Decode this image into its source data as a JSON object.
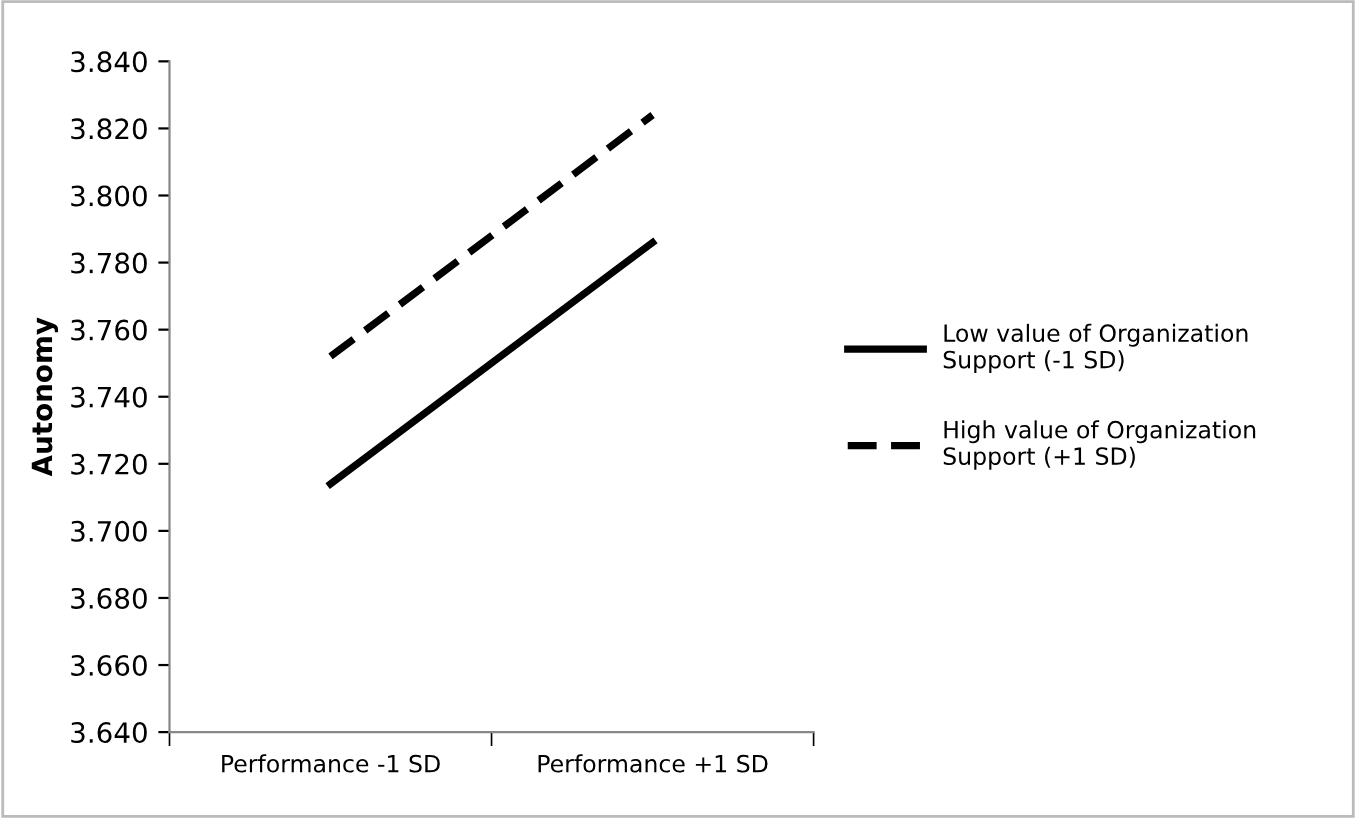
{
  "chart_data": {
    "type": "line",
    "ylabel": "Autonomy",
    "categories": [
      "Performance -1 SD",
      "Performance +1 SD"
    ],
    "series": [
      {
        "name": "Low value of Organization Support (-1 SD)",
        "color": "#000000",
        "values": [
          3.714,
          3.786
        ],
        "line_style": "solid"
      },
      {
        "name": "High value of Organization Support (+1 SD)",
        "color": "#000000",
        "values": [
          3.752,
          3.824
        ],
        "line_style": "dashed"
      }
    ],
    "ylim": [
      3.64,
      3.84
    ],
    "yticks": [
      {
        "value": 3.64,
        "label": "3.640"
      },
      {
        "value": 3.66,
        "label": "3.660"
      },
      {
        "value": 3.68,
        "label": "3.680"
      },
      {
        "value": 3.7,
        "label": "3.700"
      },
      {
        "value": 3.72,
        "label": "3.720"
      },
      {
        "value": 3.74,
        "label": "3.740"
      },
      {
        "value": 3.76,
        "label": "3.760"
      },
      {
        "value": 3.78,
        "label": "3.780"
      },
      {
        "value": 3.8,
        "label": "3.800"
      },
      {
        "value": 3.82,
        "label": "3.820"
      },
      {
        "value": 3.84,
        "label": "3.840"
      }
    ],
    "grid": false,
    "legend": "right",
    "marker": "none"
  }
}
